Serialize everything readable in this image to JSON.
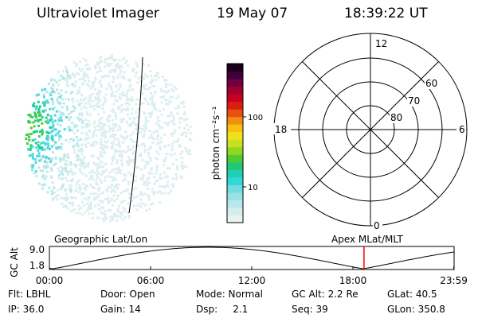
{
  "header": {
    "title": "Ultraviolet Imager",
    "date": "19 May 07",
    "time": "18:39:22 UT"
  },
  "colorbar": {
    "label": "photon cm⁻²s⁻¹",
    "ticks": [
      "100",
      "10"
    ],
    "tick_levels": [
      100,
      10
    ],
    "colors": [
      "#e8f4f4",
      "#d4eeee",
      "#b8e8ea",
      "#96e2e6",
      "#70dce2",
      "#30d8d8",
      "#20d0b0",
      "#20c878",
      "#50cc30",
      "#90d820",
      "#c8e020",
      "#f0e020",
      "#f8c010",
      "#f09010",
      "#e85010",
      "#d82010",
      "#c80020",
      "#a00030",
      "#700040",
      "#400040",
      "#180018"
    ],
    "scale": "log"
  },
  "image_panel": {
    "colors": {
      "faint": "#dceeee",
      "light": "#b8e8ea",
      "cyan": "#50d8dc",
      "teal": "#20d0a0",
      "green": "#40cc40"
    }
  },
  "polar_plot": {
    "labels": {
      "top": "12",
      "bottom": "0",
      "left": "18",
      "right": "6",
      "ring_60": "60",
      "ring_70": "70",
      "ring_80": "80"
    },
    "rings": [
      60,
      70,
      80
    ]
  },
  "timeline": {
    "title_left": "Geographic Lat/Lon",
    "title_right": "Apex MLat/MLT",
    "ylabel": "GC Alt",
    "y_ticks": [
      "9.0",
      "1.8"
    ],
    "x_ticks": [
      "00:00",
      "06:00",
      "12:00",
      "18:00",
      "23:59"
    ],
    "current_time_hours": 18.656,
    "marker_color": "#ff0000",
    "orbit": {
      "apogee_hours": 9.4,
      "perigee_hours": 18.6,
      "min_alt": 1.8,
      "max_alt": 9.0
    }
  },
  "info": {
    "filter": "Flt: LBHL",
    "door": "Door: Open",
    "mode": "Mode: Normal",
    "gc_alt": "GC Alt: 2.2 Re",
    "glat": "GLat:  40.5",
    "ip": "IP: 36.0",
    "gain": "Gain: 14",
    "dsp": "Dsp:     2.1",
    "seq": "Seq: 39",
    "glon": "GLon: 350.8"
  }
}
